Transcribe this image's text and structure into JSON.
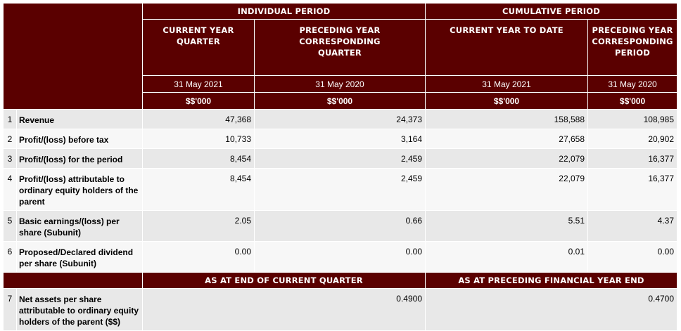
{
  "header": {
    "individual_period": "INDIVIDUAL PERIOD",
    "cumulative_period": "CUMULATIVE PERIOD",
    "columns": [
      {
        "label": "CURRENT YEAR QUARTER",
        "date": "31 May 2021",
        "currency": "$$'000"
      },
      {
        "label": "PRECEDING YEAR CORRESPONDING QUARTER",
        "date": "31 May 2020",
        "currency": "$$'000"
      },
      {
        "label": "CURRENT YEAR TO DATE",
        "date": "31 May 2021",
        "currency": "$$'000"
      },
      {
        "label": "PRECEDING YEAR CORRESPONDING PERIOD",
        "date": "31 May 2020",
        "currency": "$$'000"
      }
    ]
  },
  "rows": [
    {
      "no": "1",
      "label": "Revenue",
      "values": [
        "47,368",
        "24,373",
        "158,588",
        "108,985"
      ]
    },
    {
      "no": "2",
      "label": "Profit/(loss) before tax",
      "values": [
        "10,733",
        "3,164",
        "27,658",
        "20,902"
      ]
    },
    {
      "no": "3",
      "label": "Profit/(loss) for the period",
      "values": [
        "8,454",
        "2,459",
        "22,079",
        "16,377"
      ]
    },
    {
      "no": "4",
      "label": "Profit/(loss) attributable to ordinary equity holders of the parent",
      "values": [
        "8,454",
        "2,459",
        "22,079",
        "16,377"
      ]
    },
    {
      "no": "5",
      "label": "Basic earnings/(loss) per share (Subunit)",
      "values": [
        "2.05",
        "0.66",
        "5.51",
        "4.37"
      ]
    },
    {
      "no": "6",
      "label": "Proposed/Declared dividend per share (Subunit)",
      "values": [
        "0.00",
        "0.00",
        "0.01",
        "0.00"
      ]
    }
  ],
  "section2": {
    "current_caption": "AS AT END OF CURRENT QUARTER",
    "preceding_caption": "AS AT PRECEDING FINANCIAL YEAR END",
    "row": {
      "no": "7",
      "label": "Net assets per share attributable to ordinary equity holders of the parent ($$)",
      "current": "0.4900",
      "preceding": "0.4700"
    }
  }
}
